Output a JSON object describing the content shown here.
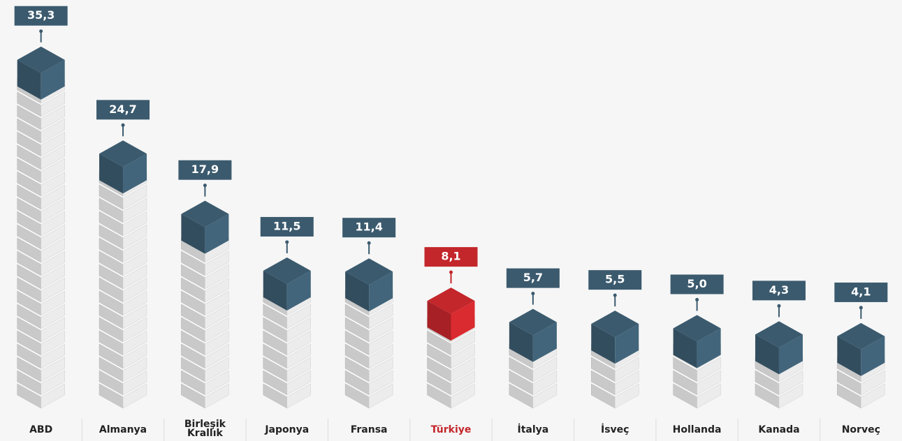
{
  "chart_data": {
    "type": "bar",
    "categories": [
      "ABD",
      "Almanya",
      "Birleşik Krallık",
      "Japonya",
      "Fransa",
      "Türkiye",
      "İtalya",
      "İsveç",
      "Hollanda",
      "Kanada",
      "Norveç"
    ],
    "values": [
      35.3,
      24.7,
      17.9,
      11.5,
      11.4,
      8.1,
      5.7,
      5.5,
      5.0,
      4.3,
      4.1
    ],
    "value_labels": [
      "35,3",
      "24,7",
      "17,9",
      "11,5",
      "11,4",
      "8,1",
      "5,7",
      "5,5",
      "5,0",
      "4,3",
      "4,1"
    ],
    "colors": [
      "#3b5a6e",
      "#3b5a6e",
      "#3b5a6e",
      "#3b5a6e",
      "#3b5a6e",
      "#c3262b",
      "#3b5a6e",
      "#3b5a6e",
      "#3b5a6e",
      "#3b5a6e",
      "#3b5a6e"
    ]
  }
}
